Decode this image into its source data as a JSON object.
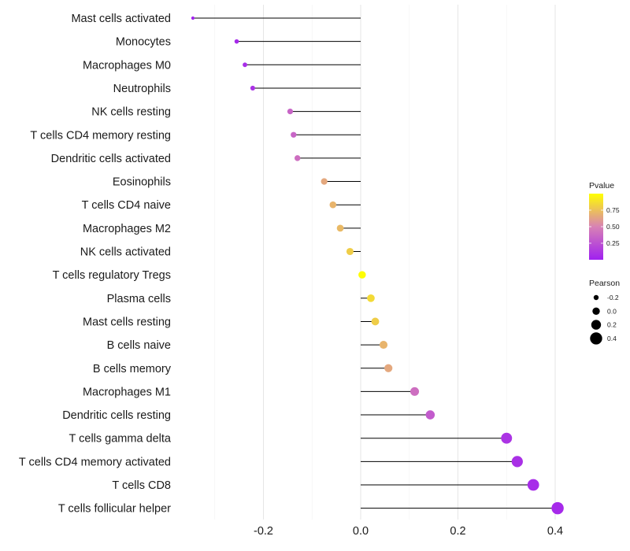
{
  "chart_data": {
    "type": "lollipop",
    "categories": [
      "Mast cells activated",
      "Monocytes",
      "Macrophages M0",
      "Neutrophils",
      "NK cells resting",
      "T cells CD4 memory resting",
      "Dendritic cells activated",
      "Eosinophils",
      "T cells CD4 naive",
      "Macrophages M2",
      "NK cells activated",
      "T cells regulatory  Tregs",
      "Plasma cells",
      "Mast cells resting",
      "B cells naive",
      "B cells memory",
      "Macrophages M1",
      "Dendritic cells resting",
      "T cells gamma delta",
      "T cells CD4 memory activated",
      "T cells CD8",
      "T cells follicular helper"
    ],
    "pearson": [
      -0.345,
      -0.255,
      -0.238,
      -0.222,
      -0.145,
      -0.138,
      -0.13,
      -0.075,
      -0.057,
      -0.042,
      -0.022,
      0.003,
      0.021,
      0.03,
      0.047,
      0.057,
      0.111,
      0.143,
      0.3,
      0.322,
      0.355,
      0.405
    ],
    "pvalue": [
      0.02,
      0.05,
      0.07,
      0.09,
      0.35,
      0.35,
      0.4,
      0.65,
      0.7,
      0.72,
      0.8,
      0.99,
      0.85,
      0.8,
      0.7,
      0.65,
      0.4,
      0.3,
      0.1,
      0.08,
      0.06,
      0.05
    ],
    "xlim": [
      -0.345,
      0.42
    ],
    "xticks": [
      -0.2,
      0.0,
      0.2,
      0.4
    ],
    "xtick_labels": [
      "-0.2",
      "0.0",
      "0.2",
      "0.4"
    ],
    "title": "",
    "xlabel": "",
    "ylabel": "",
    "grid": true,
    "legend": {
      "color": {
        "title": "Pvalue",
        "ticks": [
          0.25,
          0.5,
          0.75
        ],
        "tick_labels": [
          "0.25",
          "0.50",
          "0.75"
        ],
        "range": [
          0.0,
          1.0
        ],
        "low_color": "#a020f0",
        "mid_color": "#d882b4",
        "high_color": "#ffff00"
      },
      "size": {
        "title": "Pearson",
        "values": [
          -0.2,
          0.0,
          0.2,
          0.4
        ],
        "labels": [
          "-0.2",
          "0.0",
          "0.2",
          "0.4"
        ]
      },
      "placement": "right"
    }
  }
}
